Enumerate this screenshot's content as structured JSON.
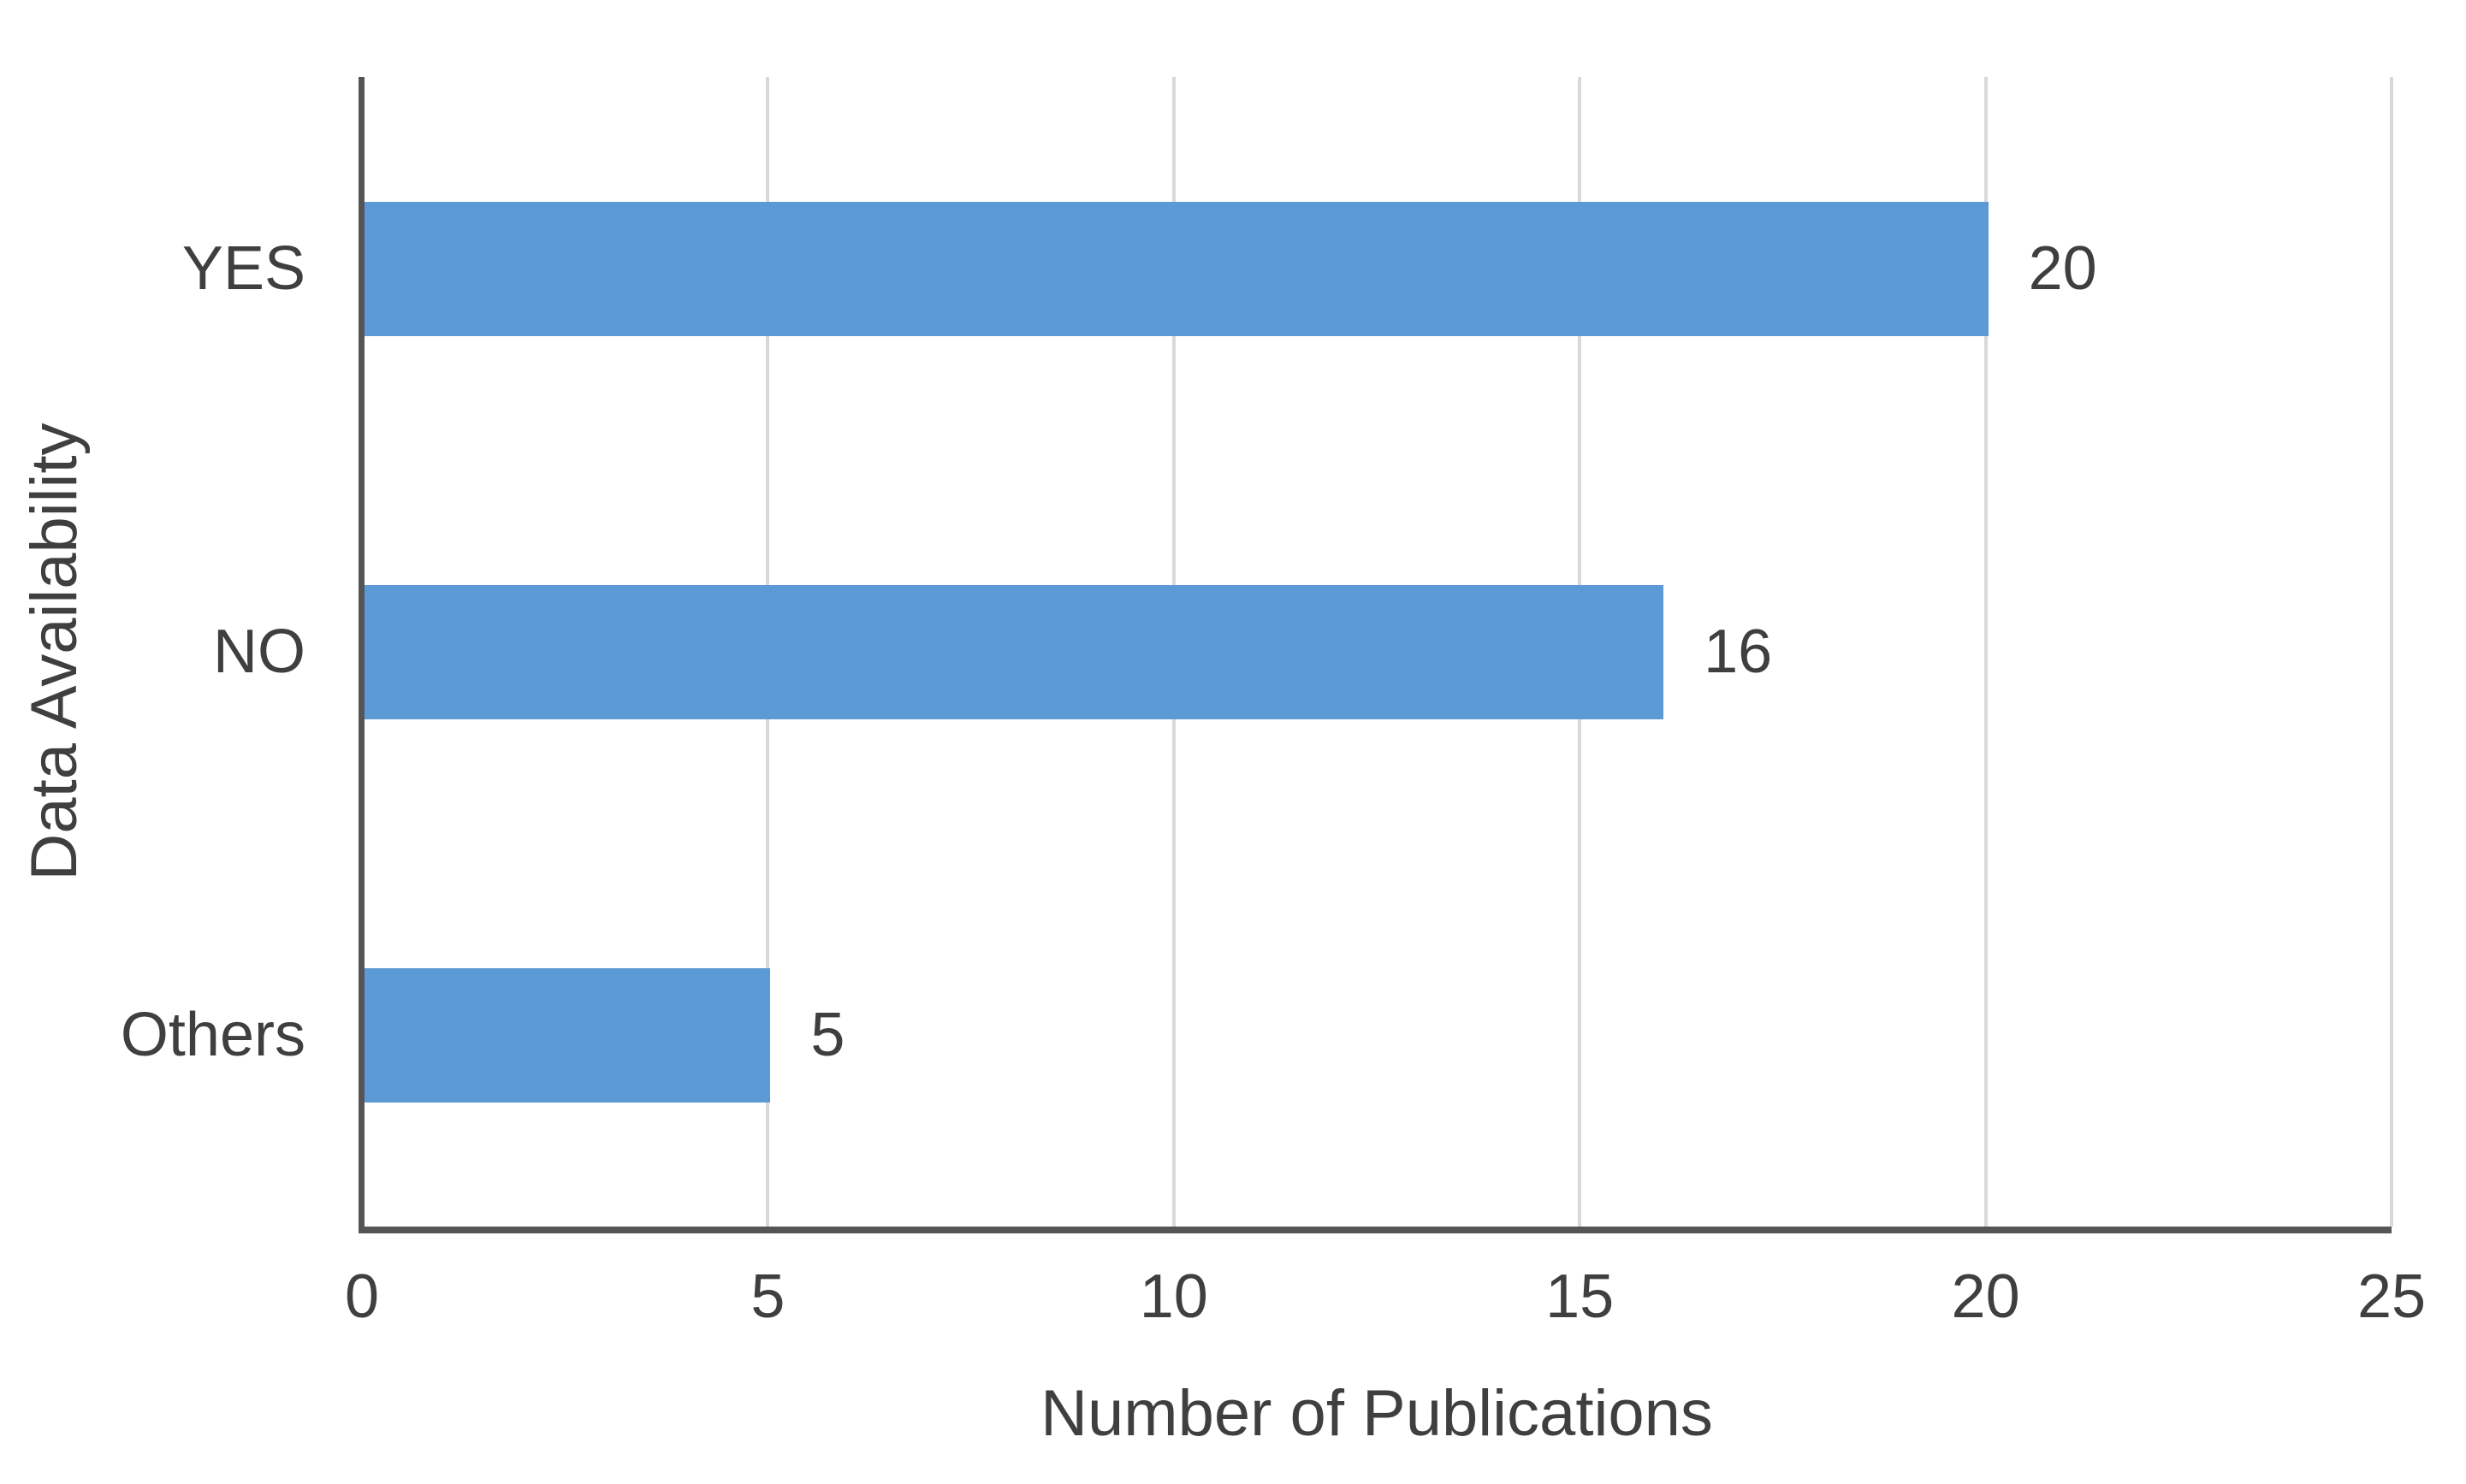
{
  "chart_data": {
    "type": "bar",
    "orientation": "horizontal",
    "title": "",
    "categories": [
      "YES",
      "NO",
      "Others"
    ],
    "values": [
      20,
      16,
      5
    ],
    "data_labels": [
      "20",
      "16",
      "5"
    ],
    "xlabel": "Number of Publications",
    "ylabel": "Data Availability",
    "xlim": [
      0,
      25
    ],
    "xticks": [
      0,
      5,
      10,
      15,
      20,
      25
    ],
    "xtick_labels": [
      "0",
      "5",
      "10",
      "15",
      "20",
      "25"
    ],
    "grid": "vertical-only",
    "legend": "none",
    "colors": {
      "bar": "#5b9ad5",
      "axis_line": "#555555",
      "gridline": "#d9d9d9",
      "text": "#3f3f3f",
      "background": "#ffffff"
    }
  }
}
